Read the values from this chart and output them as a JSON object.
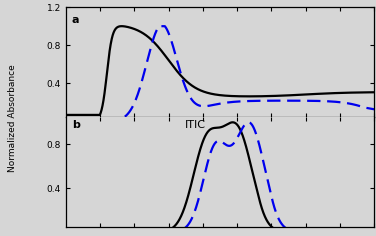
{
  "ylabel": "Normalized Absorbance",
  "label_b": "ITIC",
  "yticks_a": [
    0.4,
    0.8,
    1.2
  ],
  "yticks_b": [
    0.4,
    0.8
  ],
  "ylim_a": [
    0.05,
    1.05
  ],
  "ylim_b": [
    0.05,
    1.05
  ],
  "xlim": [
    450,
    900
  ],
  "background_color": "#d6d6d6",
  "solid_color": "#000000",
  "dashed_color": "#0000ee"
}
